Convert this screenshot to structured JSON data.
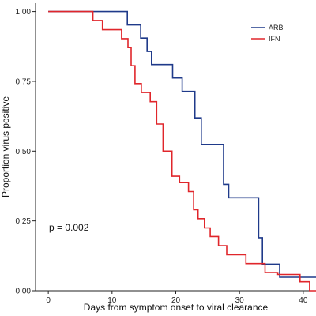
{
  "chart_data": {
    "type": "line",
    "step": true,
    "xlabel": "Days from symptom onset to viral clearance",
    "ylabel": "Proportion virus positive",
    "xlim": [
      -2,
      42
    ],
    "ylim": [
      0,
      1.03
    ],
    "x_ticks": [
      0,
      10,
      20,
      30,
      40
    ],
    "y_ticks": [
      0.0,
      0.25,
      0.5,
      0.75,
      1.0
    ],
    "y_tick_labels": [
      "0.00",
      "0.25",
      "0.50",
      "0.75",
      "1.00"
    ],
    "grid": false,
    "legend_position": "top-right",
    "annotation": "p = 0.002",
    "series": [
      {
        "name": "ARB",
        "color": "#1f3a8a",
        "points": [
          [
            0,
            1.0
          ],
          [
            12.4,
            1.0
          ],
          [
            12.4,
            0.952
          ],
          [
            14.5,
            0.952
          ],
          [
            14.5,
            0.905
          ],
          [
            15.5,
            0.905
          ],
          [
            15.5,
            0.857
          ],
          [
            16.2,
            0.857
          ],
          [
            16.2,
            0.81
          ],
          [
            19.5,
            0.81
          ],
          [
            19.5,
            0.762
          ],
          [
            21.0,
            0.762
          ],
          [
            21.0,
            0.714
          ],
          [
            23.0,
            0.714
          ],
          [
            23.0,
            0.619
          ],
          [
            24.0,
            0.619
          ],
          [
            24.0,
            0.524
          ],
          [
            27.5,
            0.524
          ],
          [
            27.5,
            0.381
          ],
          [
            28.3,
            0.381
          ],
          [
            28.3,
            0.333
          ],
          [
            33.0,
            0.333
          ],
          [
            33.0,
            0.19
          ],
          [
            33.6,
            0.19
          ],
          [
            33.6,
            0.095
          ],
          [
            36.3,
            0.095
          ],
          [
            36.3,
            0.048
          ],
          [
            42,
            0.048
          ]
        ]
      },
      {
        "name": "IFN",
        "color": "#e0262b",
        "points": [
          [
            0,
            1.0
          ],
          [
            7.0,
            1.0
          ],
          [
            7.0,
            0.968
          ],
          [
            8.5,
            0.968
          ],
          [
            8.5,
            0.935
          ],
          [
            11.5,
            0.935
          ],
          [
            11.5,
            0.903
          ],
          [
            12.5,
            0.903
          ],
          [
            12.5,
            0.871
          ],
          [
            13.0,
            0.871
          ],
          [
            13.0,
            0.806
          ],
          [
            13.6,
            0.806
          ],
          [
            13.6,
            0.742
          ],
          [
            14.6,
            0.742
          ],
          [
            14.6,
            0.71
          ],
          [
            16.0,
            0.71
          ],
          [
            16.0,
            0.677
          ],
          [
            17.0,
            0.677
          ],
          [
            17.0,
            0.597
          ],
          [
            18.0,
            0.597
          ],
          [
            18.0,
            0.5
          ],
          [
            19.4,
            0.5
          ],
          [
            19.4,
            0.41
          ],
          [
            20.6,
            0.41
          ],
          [
            20.6,
            0.387
          ],
          [
            22.0,
            0.387
          ],
          [
            22.0,
            0.355
          ],
          [
            22.8,
            0.355
          ],
          [
            22.8,
            0.29
          ],
          [
            23.5,
            0.29
          ],
          [
            23.5,
            0.258
          ],
          [
            24.5,
            0.258
          ],
          [
            24.5,
            0.225
          ],
          [
            25.4,
            0.225
          ],
          [
            25.4,
            0.194
          ],
          [
            26.7,
            0.194
          ],
          [
            26.7,
            0.161
          ],
          [
            28.0,
            0.161
          ],
          [
            28.0,
            0.129
          ],
          [
            31.0,
            0.129
          ],
          [
            31.0,
            0.097
          ],
          [
            34.0,
            0.097
          ],
          [
            34.0,
            0.065
          ],
          [
            36.0,
            0.065
          ],
          [
            36.0,
            0.058
          ],
          [
            39.5,
            0.058
          ],
          [
            39.5,
            0.032
          ],
          [
            41.0,
            0.032
          ],
          [
            41.0,
            0.0
          ],
          [
            42,
            0.0
          ]
        ]
      }
    ]
  }
}
